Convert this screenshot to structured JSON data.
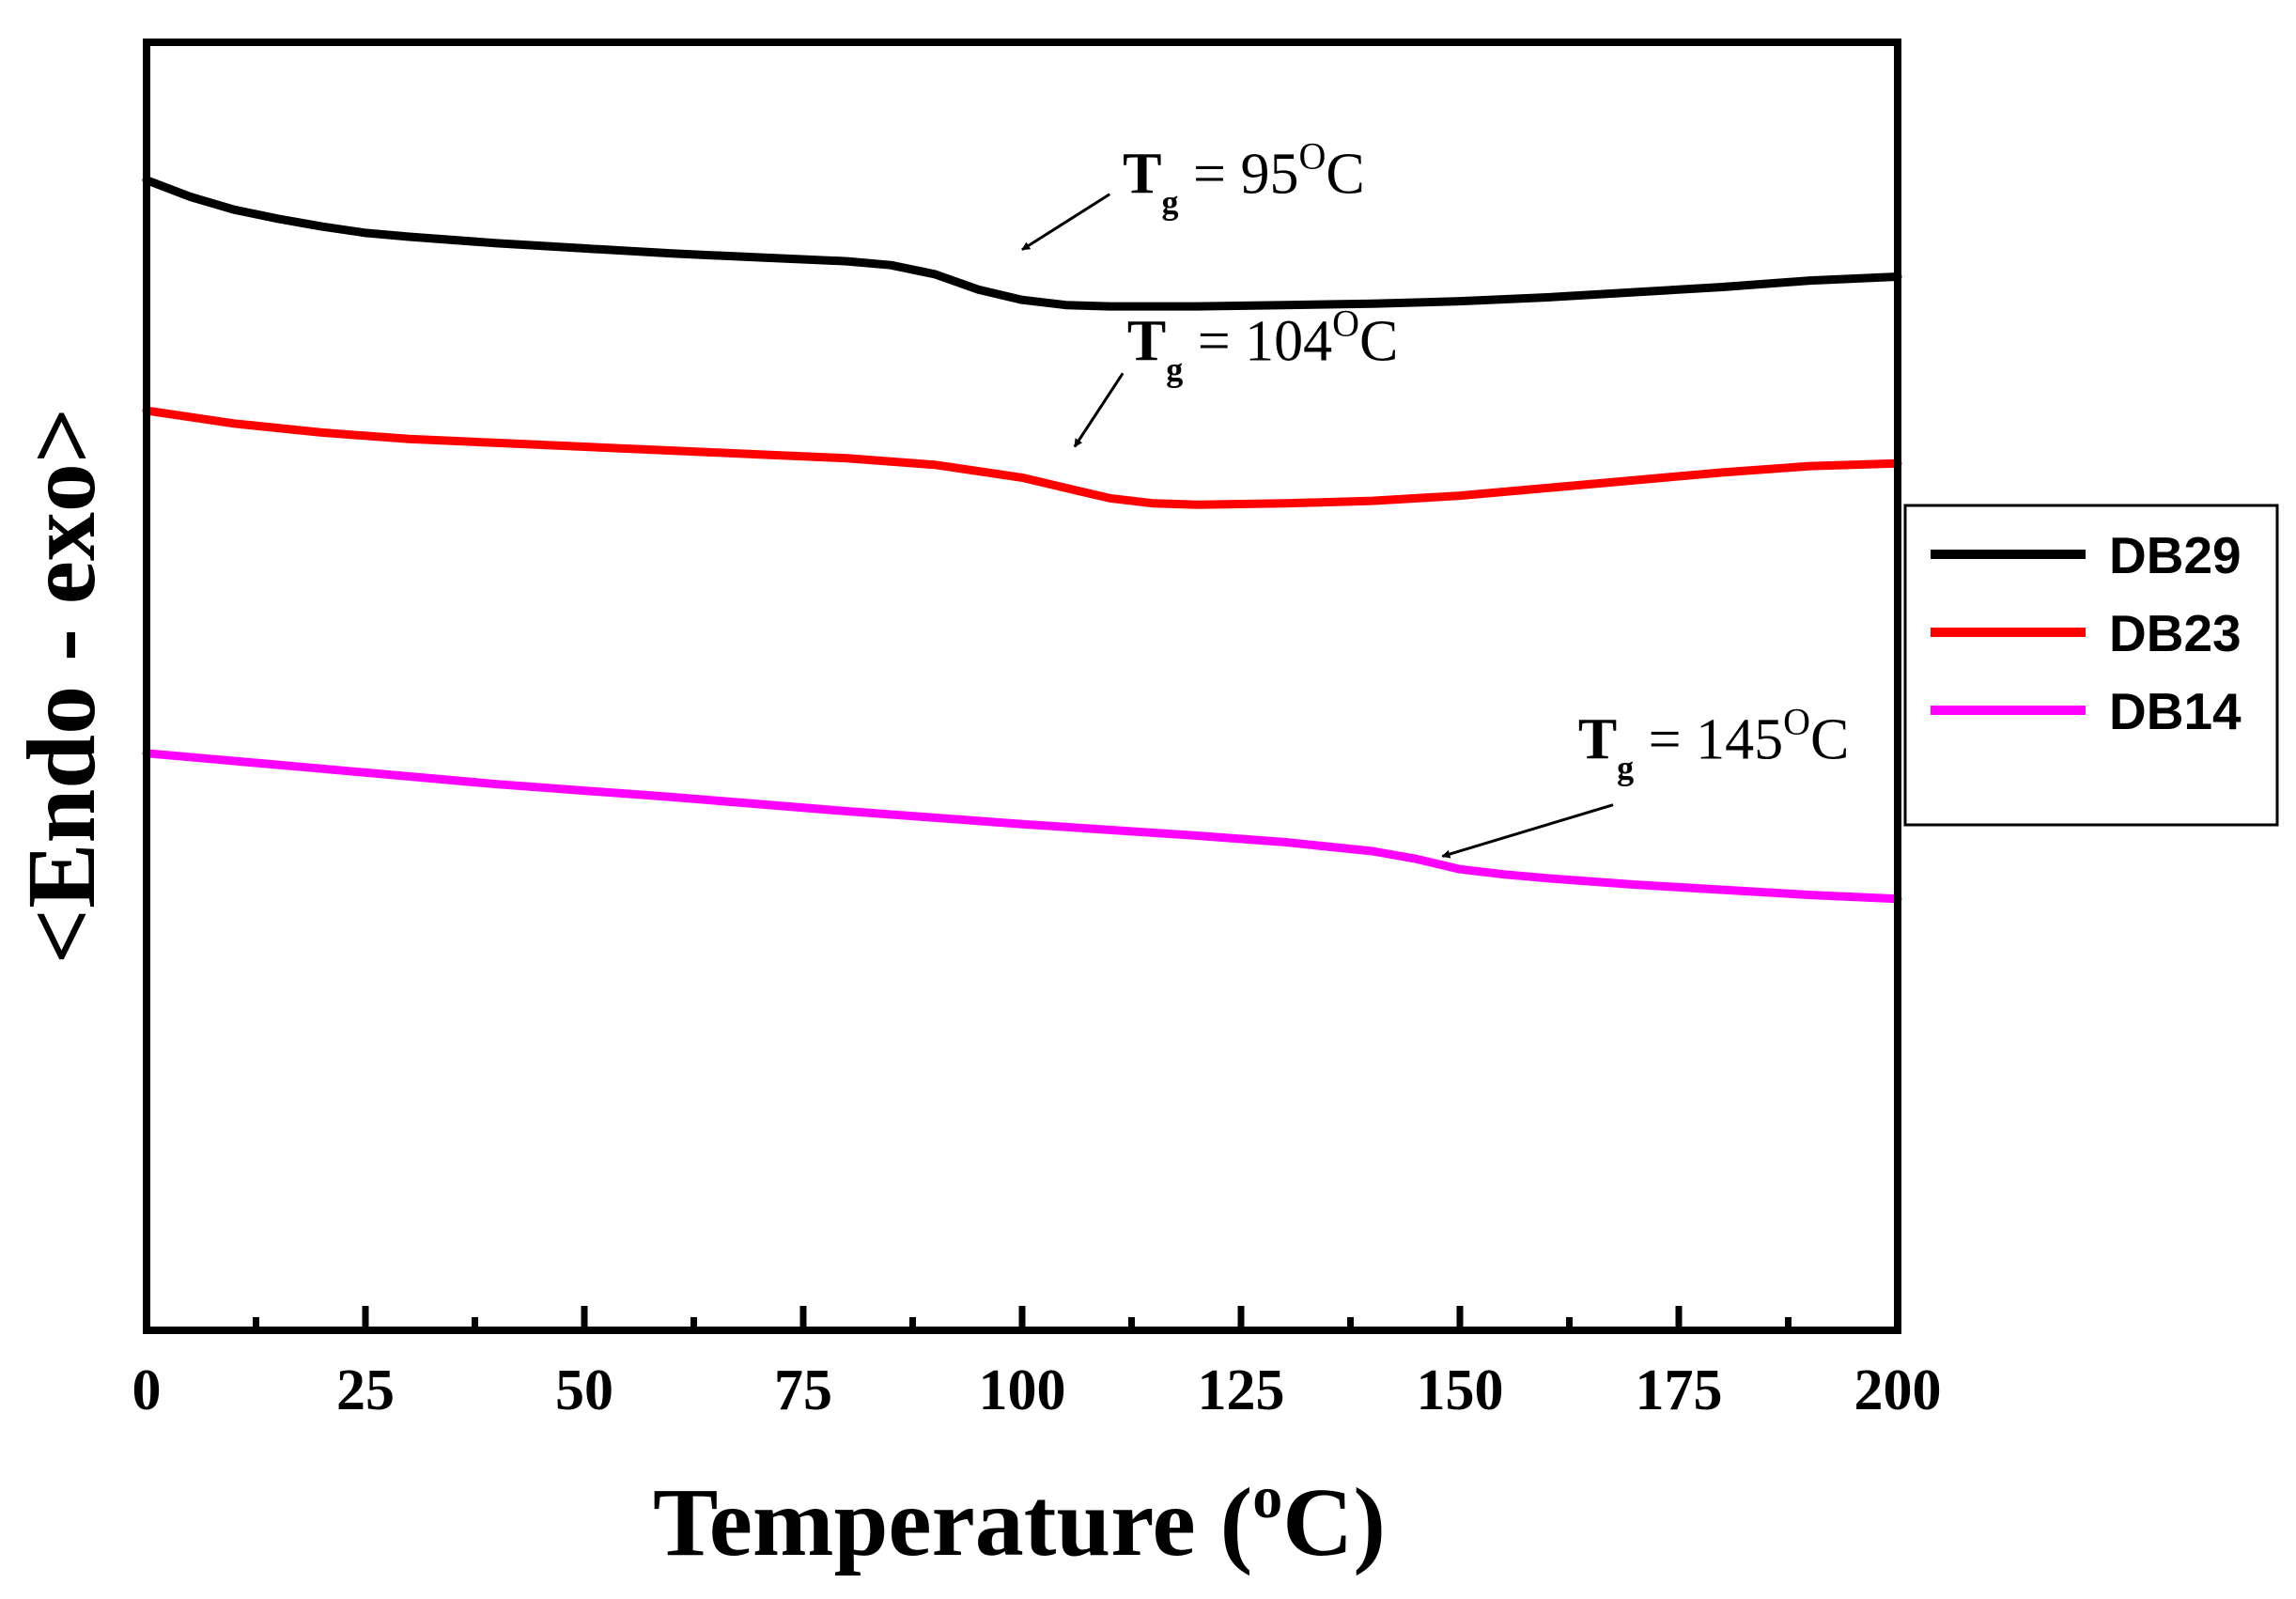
{
  "chart_data": {
    "type": "line",
    "title": "",
    "xlabel_main": "Temperature (",
    "xlabel_sup": "o",
    "xlabel_end": "C)",
    "ylabel": "<Endo - exo>",
    "xlim": [
      0,
      200
    ],
    "ylim": [
      0,
      100
    ],
    "x_ticks": [
      0,
      25,
      50,
      75,
      100,
      125,
      150,
      175,
      200
    ],
    "x_tick_labels": [
      "0",
      "25",
      "50",
      "75",
      "100",
      "125",
      "150",
      "175",
      "200"
    ],
    "minor_x_ticks": [
      12.5,
      37.5,
      62.5,
      87.5,
      112.5,
      137.5,
      162.5,
      187.5
    ],
    "y_ticks_shown": false,
    "grid": false,
    "legend_position": "right",
    "series": [
      {
        "name": "DB29",
        "color": "#000000",
        "points": [
          [
            0,
            89.3
          ],
          [
            5,
            88.0
          ],
          [
            10,
            87.0
          ],
          [
            15,
            86.3
          ],
          [
            20,
            85.7
          ],
          [
            25,
            85.2
          ],
          [
            30,
            84.9
          ],
          [
            40,
            84.4
          ],
          [
            50,
            84.0
          ],
          [
            60,
            83.6
          ],
          [
            70,
            83.3
          ],
          [
            80,
            83.0
          ],
          [
            85,
            82.7
          ],
          [
            90,
            82.0
          ],
          [
            95,
            80.8
          ],
          [
            100,
            80.0
          ],
          [
            105,
            79.6
          ],
          [
            110,
            79.5
          ],
          [
            120,
            79.5
          ],
          [
            130,
            79.6
          ],
          [
            140,
            79.7
          ],
          [
            150,
            79.9
          ],
          [
            160,
            80.2
          ],
          [
            170,
            80.6
          ],
          [
            180,
            81.0
          ],
          [
            190,
            81.5
          ],
          [
            200,
            81.8
          ]
        ]
      },
      {
        "name": "DB23",
        "color": "#ff0000",
        "points": [
          [
            0,
            71.4
          ],
          [
            10,
            70.4
          ],
          [
            20,
            69.7
          ],
          [
            30,
            69.2
          ],
          [
            40,
            68.9
          ],
          [
            50,
            68.6
          ],
          [
            60,
            68.3
          ],
          [
            70,
            68.0
          ],
          [
            80,
            67.7
          ],
          [
            90,
            67.2
          ],
          [
            100,
            66.2
          ],
          [
            105,
            65.4
          ],
          [
            110,
            64.6
          ],
          [
            115,
            64.2
          ],
          [
            120,
            64.1
          ],
          [
            130,
            64.2
          ],
          [
            140,
            64.4
          ],
          [
            150,
            64.8
          ],
          [
            160,
            65.4
          ],
          [
            170,
            66.0
          ],
          [
            180,
            66.6
          ],
          [
            190,
            67.1
          ],
          [
            200,
            67.3
          ]
        ]
      },
      {
        "name": "DB14",
        "color": "#ff00ff",
        "points": [
          [
            0,
            44.8
          ],
          [
            20,
            43.6
          ],
          [
            40,
            42.4
          ],
          [
            60,
            41.4
          ],
          [
            80,
            40.3
          ],
          [
            100,
            39.3
          ],
          [
            120,
            38.4
          ],
          [
            130,
            37.9
          ],
          [
            140,
            37.2
          ],
          [
            145,
            36.6
          ],
          [
            150,
            35.8
          ],
          [
            155,
            35.4
          ],
          [
            160,
            35.1
          ],
          [
            170,
            34.6
          ],
          [
            180,
            34.2
          ],
          [
            190,
            33.8
          ],
          [
            200,
            33.5
          ]
        ]
      }
    ],
    "annotations": [
      {
        "label": "T",
        "sub": "g",
        "text": " = 95",
        "sup": "O",
        "unit": "C",
        "text_x": 111.5,
        "text_y": 88.3,
        "arrow_from": [
          110,
          88.2
        ],
        "arrow_to": [
          100,
          83.9
        ]
      },
      {
        "label": "T",
        "sub": "g",
        "text": " = 104",
        "sup": "O",
        "unit": "C",
        "text_x": 112,
        "text_y": 75.3,
        "arrow_from": [
          111.5,
          74.3
        ],
        "arrow_to": [
          106,
          68.6
        ]
      },
      {
        "label": "T",
        "sub": "g",
        "text": " = 145",
        "sup": "O",
        "unit": "C",
        "text_x": 163.5,
        "text_y": 44.4,
        "arrow_from": [
          167.5,
          40.8
        ],
        "arrow_to": [
          148,
          36.8
        ]
      }
    ]
  }
}
